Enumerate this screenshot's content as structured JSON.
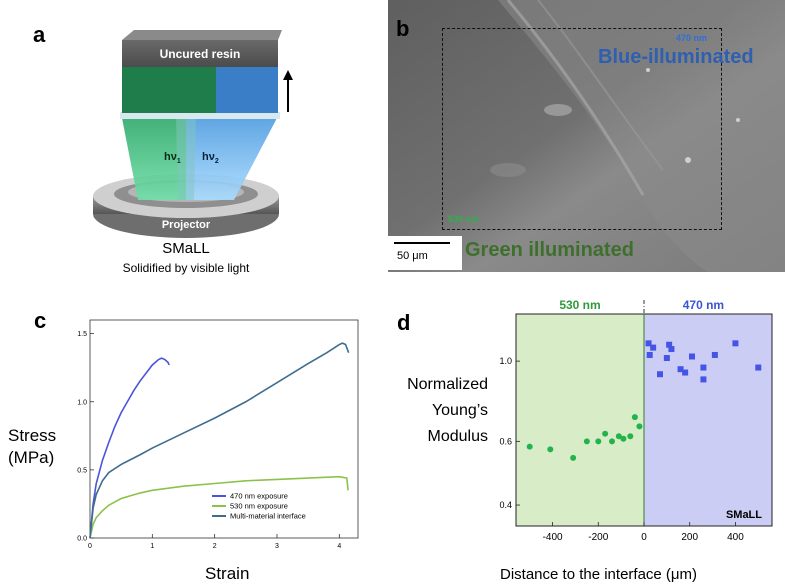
{
  "panel_a": {
    "label": "a",
    "uncured_resin": "Uncured resin",
    "hv1": "hν",
    "hv1_sub": "1",
    "hv2": "hν",
    "hv2_sub": "2",
    "projector": "Projector",
    "title": "SMaLL",
    "subtitle": "Solidified by visible light",
    "colors": {
      "green": "#1f8a52",
      "blue": "#3d7fcb",
      "top": "#5c5c5c"
    }
  },
  "panel_b": {
    "label": "b",
    "blue_label": "Blue-illuminated",
    "blue_nm": "470 nm",
    "green_label": "Green illuminated",
    "green_nm": "530 nm",
    "scale_bar": "50 μm"
  },
  "panel_c": {
    "label": "c",
    "ylabel_line1": "Stress",
    "ylabel_line2": "(MPa)",
    "xlabel": "Strain",
    "chart_data": {
      "type": "line",
      "xlim": [
        0,
        4.3
      ],
      "ylim": [
        0,
        1.6
      ],
      "x_ticks": [
        "0",
        "1",
        "2",
        "3",
        "4"
      ],
      "y_ticks": [
        "0.0",
        "0.5",
        "1.0",
        "1.5"
      ],
      "legend_position": "bottom-right",
      "series": [
        {
          "name": "470 nm exposure",
          "color": "#4a55d8",
          "x": [
            0,
            0.05,
            0.1,
            0.2,
            0.3,
            0.4,
            0.5,
            0.6,
            0.7,
            0.8,
            0.9,
            1.0,
            1.1,
            1.15,
            1.2,
            1.25,
            1.27
          ],
          "y": [
            0,
            0.25,
            0.4,
            0.57,
            0.7,
            0.82,
            0.92,
            1.0,
            1.08,
            1.15,
            1.21,
            1.27,
            1.31,
            1.32,
            1.31,
            1.29,
            1.27
          ]
        },
        {
          "name": "530 nm exposure",
          "color": "#8bc34a",
          "x": [
            0,
            0.05,
            0.1,
            0.2,
            0.3,
            0.5,
            0.8,
            1.0,
            1.5,
            2.0,
            2.5,
            3.0,
            3.5,
            4.0,
            4.12,
            4.13,
            4.14
          ],
          "y": [
            0,
            0.1,
            0.15,
            0.2,
            0.24,
            0.29,
            0.33,
            0.35,
            0.38,
            0.4,
            0.42,
            0.43,
            0.44,
            0.45,
            0.44,
            0.4,
            0.35
          ]
        },
        {
          "name": "Multi-material interface",
          "color": "#3f6c8f",
          "x": [
            0,
            0.05,
            0.1,
            0.2,
            0.3,
            0.5,
            0.8,
            1.0,
            1.5,
            2.0,
            2.5,
            3.0,
            3.5,
            3.8,
            4.0,
            4.05,
            4.1,
            4.15
          ],
          "y": [
            0,
            0.22,
            0.32,
            0.42,
            0.48,
            0.54,
            0.61,
            0.66,
            0.77,
            0.88,
            1.0,
            1.14,
            1.28,
            1.36,
            1.42,
            1.43,
            1.42,
            1.36
          ]
        }
      ]
    }
  },
  "panel_d": {
    "label": "d",
    "green_header": "530 nm",
    "blue_header": "470 nm",
    "ylabel_line1": "Normalized",
    "ylabel_line2": "Young’s",
    "ylabel_line3": "Modulus",
    "xlabel": "Distance to the interface (μm)",
    "tag": "SMaLL",
    "chart_data": {
      "type": "scatter",
      "xlim": [
        -560,
        560
      ],
      "ylim": [
        0.35,
        1.35
      ],
      "y_scale": "log",
      "x_ticks": [
        "-400",
        "-200",
        "0",
        "200",
        "400"
      ],
      "y_ticks": [
        "0.4",
        "0.6",
        "1.0"
      ],
      "regions": [
        {
          "name": "530 nm",
          "range": [
            -560,
            0
          ],
          "color": "#d8ecc8"
        },
        {
          "name": "470 nm",
          "range": [
            0,
            560
          ],
          "color": "#cccdf5"
        }
      ],
      "series": [
        {
          "name": "530 nm",
          "color": "#22b34a",
          "marker": "circle",
          "x": [
            -500,
            -410,
            -310,
            -250,
            -200,
            -170,
            -140,
            -110,
            -90,
            -60,
            -40,
            -20
          ],
          "y": [
            0.58,
            0.57,
            0.54,
            0.6,
            0.6,
            0.63,
            0.6,
            0.62,
            0.61,
            0.62,
            0.7,
            0.66
          ]
        },
        {
          "name": "470 nm",
          "color": "#4455e6",
          "marker": "square",
          "x": [
            20,
            25,
            40,
            70,
            100,
            110,
            120,
            160,
            180,
            210,
            260,
            260,
            310,
            400,
            500
          ],
          "y": [
            1.12,
            1.04,
            1.09,
            0.92,
            1.02,
            1.11,
            1.08,
            0.95,
            0.93,
            1.03,
            0.89,
            0.96,
            1.04,
            1.12,
            0.96
          ]
        }
      ]
    }
  }
}
